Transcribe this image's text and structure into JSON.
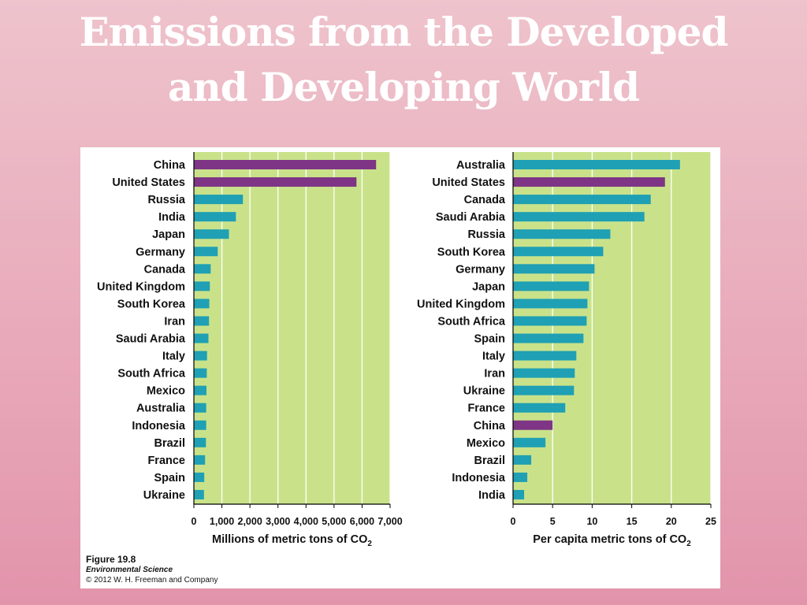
{
  "slide": {
    "title_line1": "Emissions from the Developed",
    "title_line2": "and Developing World"
  },
  "caption": {
    "figure": "Figure 19.8",
    "book": "Environmental Science",
    "copyright": "© 2012 W. H. Freeman and Company"
  },
  "colors": {
    "plot_bg": "#c9e28a",
    "bar_default": "#1fa0b4",
    "bar_highlight": "#7e3585",
    "grid": "#ffffff"
  },
  "chart_data": [
    {
      "type": "bar",
      "orientation": "horizontal",
      "title": "",
      "xlabel_main": "Millions of metric tons of CO",
      "xlabel_sub": "2",
      "xlim": [
        0,
        7000
      ],
      "xticks": [
        "0",
        "1,000",
        "2,000",
        "3,000",
        "4,000",
        "5,000",
        "6,000",
        "7,000"
      ],
      "grid": true,
      "categories": [
        "China",
        "United States",
        "Russia",
        "India",
        "Japan",
        "Germany",
        "Canada",
        "United Kingdom",
        "South Korea",
        "Iran",
        "Saudi Arabia",
        "Italy",
        "South Africa",
        "Mexico",
        "Australia",
        "Indonesia",
        "Brazil",
        "France",
        "Spain",
        "Ukraine"
      ],
      "values": [
        6500,
        5800,
        1750,
        1500,
        1250,
        850,
        600,
        570,
        550,
        540,
        520,
        470,
        460,
        450,
        440,
        440,
        430,
        400,
        370,
        360
      ],
      "highlighted": [
        "China",
        "United States"
      ]
    },
    {
      "type": "bar",
      "orientation": "horizontal",
      "title": "",
      "xlabel_main": "Per capita metric tons of CO",
      "xlabel_sub": "2",
      "xlim": [
        0,
        25
      ],
      "xticks": [
        "0",
        "5",
        "10",
        "15",
        "20",
        "25"
      ],
      "grid": true,
      "categories": [
        "Australia",
        "United States",
        "Canada",
        "Saudi Arabia",
        "Russia",
        "South Korea",
        "Germany",
        "Japan",
        "United Kingdom",
        "South Africa",
        "Spain",
        "Italy",
        "Iran",
        "Ukraine",
        "France",
        "China",
        "Mexico",
        "Brazil",
        "Indonesia",
        "India"
      ],
      "values": [
        21.1,
        19.2,
        17.4,
        16.6,
        12.3,
        11.4,
        10.3,
        9.6,
        9.4,
        9.3,
        8.9,
        8.0,
        7.8,
        7.7,
        6.6,
        5.0,
        4.1,
        2.3,
        1.8,
        1.4
      ],
      "highlighted": [
        "United States",
        "China"
      ]
    }
  ]
}
